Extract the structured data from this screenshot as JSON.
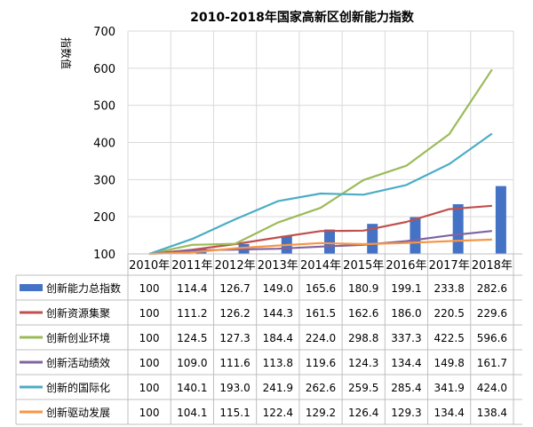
{
  "chart_data": {
    "type": "bar",
    "title": "2010-2018年国家高新区创新能力指数",
    "ylabel": "指数值",
    "ylim": [
      100,
      700
    ],
    "yticks": [
      100,
      200,
      300,
      400,
      500,
      600,
      700
    ],
    "grid": true,
    "categories": [
      "2010年",
      "2011年",
      "2012年",
      "2013年",
      "2014年",
      "2015年",
      "2016年",
      "2017年",
      "2018年"
    ],
    "series": [
      {
        "name": "创新能力总指数",
        "kind": "bar",
        "color": "#4472c4",
        "values": [
          100,
          114.4,
          126.7,
          149.0,
          165.6,
          180.9,
          199.1,
          233.8,
          282.6
        ],
        "labels": [
          "100",
          "114.4",
          "126.7",
          "149.0",
          "165.6",
          "180.9",
          "199.1",
          "233.8",
          "282.6"
        ]
      },
      {
        "name": "创新资源集聚",
        "kind": "line",
        "color": "#c0504d",
        "values": [
          100,
          111.2,
          126.2,
          144.3,
          161.5,
          162.6,
          186.0,
          220.5,
          229.6
        ],
        "labels": [
          "100",
          "111.2",
          "126.2",
          "144.3",
          "161.5",
          "162.6",
          "186.0",
          "220.5",
          "229.6"
        ]
      },
      {
        "name": "创新创业环境",
        "kind": "line",
        "color": "#9bbb59",
        "values": [
          100,
          124.5,
          127.3,
          184.4,
          224.0,
          298.8,
          337.3,
          422.5,
          596.6
        ],
        "labels": [
          "100",
          "124.5",
          "127.3",
          "184.4",
          "224.0",
          "298.8",
          "337.3",
          "422.5",
          "596.6"
        ]
      },
      {
        "name": "创新活动绩效",
        "kind": "line",
        "color": "#8064a2",
        "values": [
          100,
          109.0,
          111.6,
          113.8,
          119.6,
          124.3,
          134.4,
          149.8,
          161.7
        ],
        "labels": [
          "100",
          "109.0",
          "111.6",
          "113.8",
          "119.6",
          "124.3",
          "134.4",
          "149.8",
          "161.7"
        ]
      },
      {
        "name": "创新的国际化",
        "kind": "line",
        "color": "#4bacc6",
        "values": [
          100,
          140.1,
          193.0,
          241.9,
          262.6,
          259.5,
          285.4,
          341.9,
          424.0
        ],
        "labels": [
          "100",
          "140.1",
          "193.0",
          "241.9",
          "262.6",
          "259.5",
          "285.4",
          "341.9",
          "424.0"
        ]
      },
      {
        "name": "创新驱动发展",
        "kind": "line",
        "color": "#f79646",
        "values": [
          100,
          104.1,
          115.1,
          122.4,
          129.2,
          126.4,
          129.3,
          134.4,
          138.4
        ],
        "labels": [
          "100",
          "104.1",
          "115.1",
          "122.4",
          "129.2",
          "126.4",
          "129.3",
          "134.4",
          "138.4"
        ]
      }
    ]
  }
}
